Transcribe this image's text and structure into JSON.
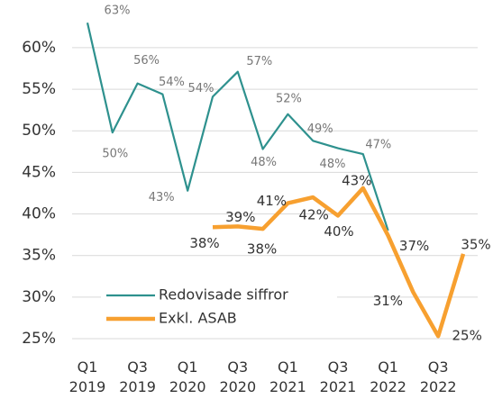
{
  "chart_data": {
    "type": "line",
    "categories": [
      "Q1 2019",
      null,
      "Q3 2019",
      null,
      "Q1 2020",
      null,
      "Q3 2020",
      null,
      "Q1 2021",
      null,
      "Q3 2021",
      null,
      "Q1 2022",
      null,
      "Q3 2022",
      null
    ],
    "series": [
      {
        "name": "Redovisade siffror",
        "color": "#2e918e",
        "values": [
          63,
          49.8,
          55.7,
          54.4,
          42.8,
          54.1,
          57.1,
          47.8,
          52,
          48.8,
          47.9,
          47.2,
          38,
          null,
          null,
          null
        ],
        "value_labels": [
          "63%",
          "50%",
          "56%",
          "54%",
          "43%",
          "54%",
          "57%",
          "48%",
          "52%",
          "49%",
          "48%",
          "47%",
          null,
          null,
          null,
          null
        ]
      },
      {
        "name": "Exkl. ASAB",
        "color": "#f7a030",
        "values": [
          null,
          null,
          null,
          null,
          null,
          38.4,
          38.5,
          38.2,
          41.3,
          42,
          39.8,
          43.1,
          37.4,
          30.6,
          25.3,
          35.2
        ],
        "value_labels": [
          null,
          null,
          null,
          null,
          null,
          "38%",
          "39%",
          "38%",
          "41%",
          "42%",
          "40%",
          "43%",
          "37%",
          "31%",
          "25%",
          "35%"
        ]
      }
    ],
    "ylim": [
      25,
      64
    ],
    "yticks": [
      {
        "value": 25,
        "label": "25%"
      },
      {
        "value": 30,
        "label": "30%"
      },
      {
        "value": 35,
        "label": "35%"
      },
      {
        "value": 40,
        "label": "40%"
      },
      {
        "value": 45,
        "label": "45%"
      },
      {
        "value": 50,
        "label": "50%"
      },
      {
        "value": 55,
        "label": "55%"
      },
      {
        "value": 60,
        "label": "60%"
      }
    ],
    "grid": true,
    "legend": "lower left"
  }
}
